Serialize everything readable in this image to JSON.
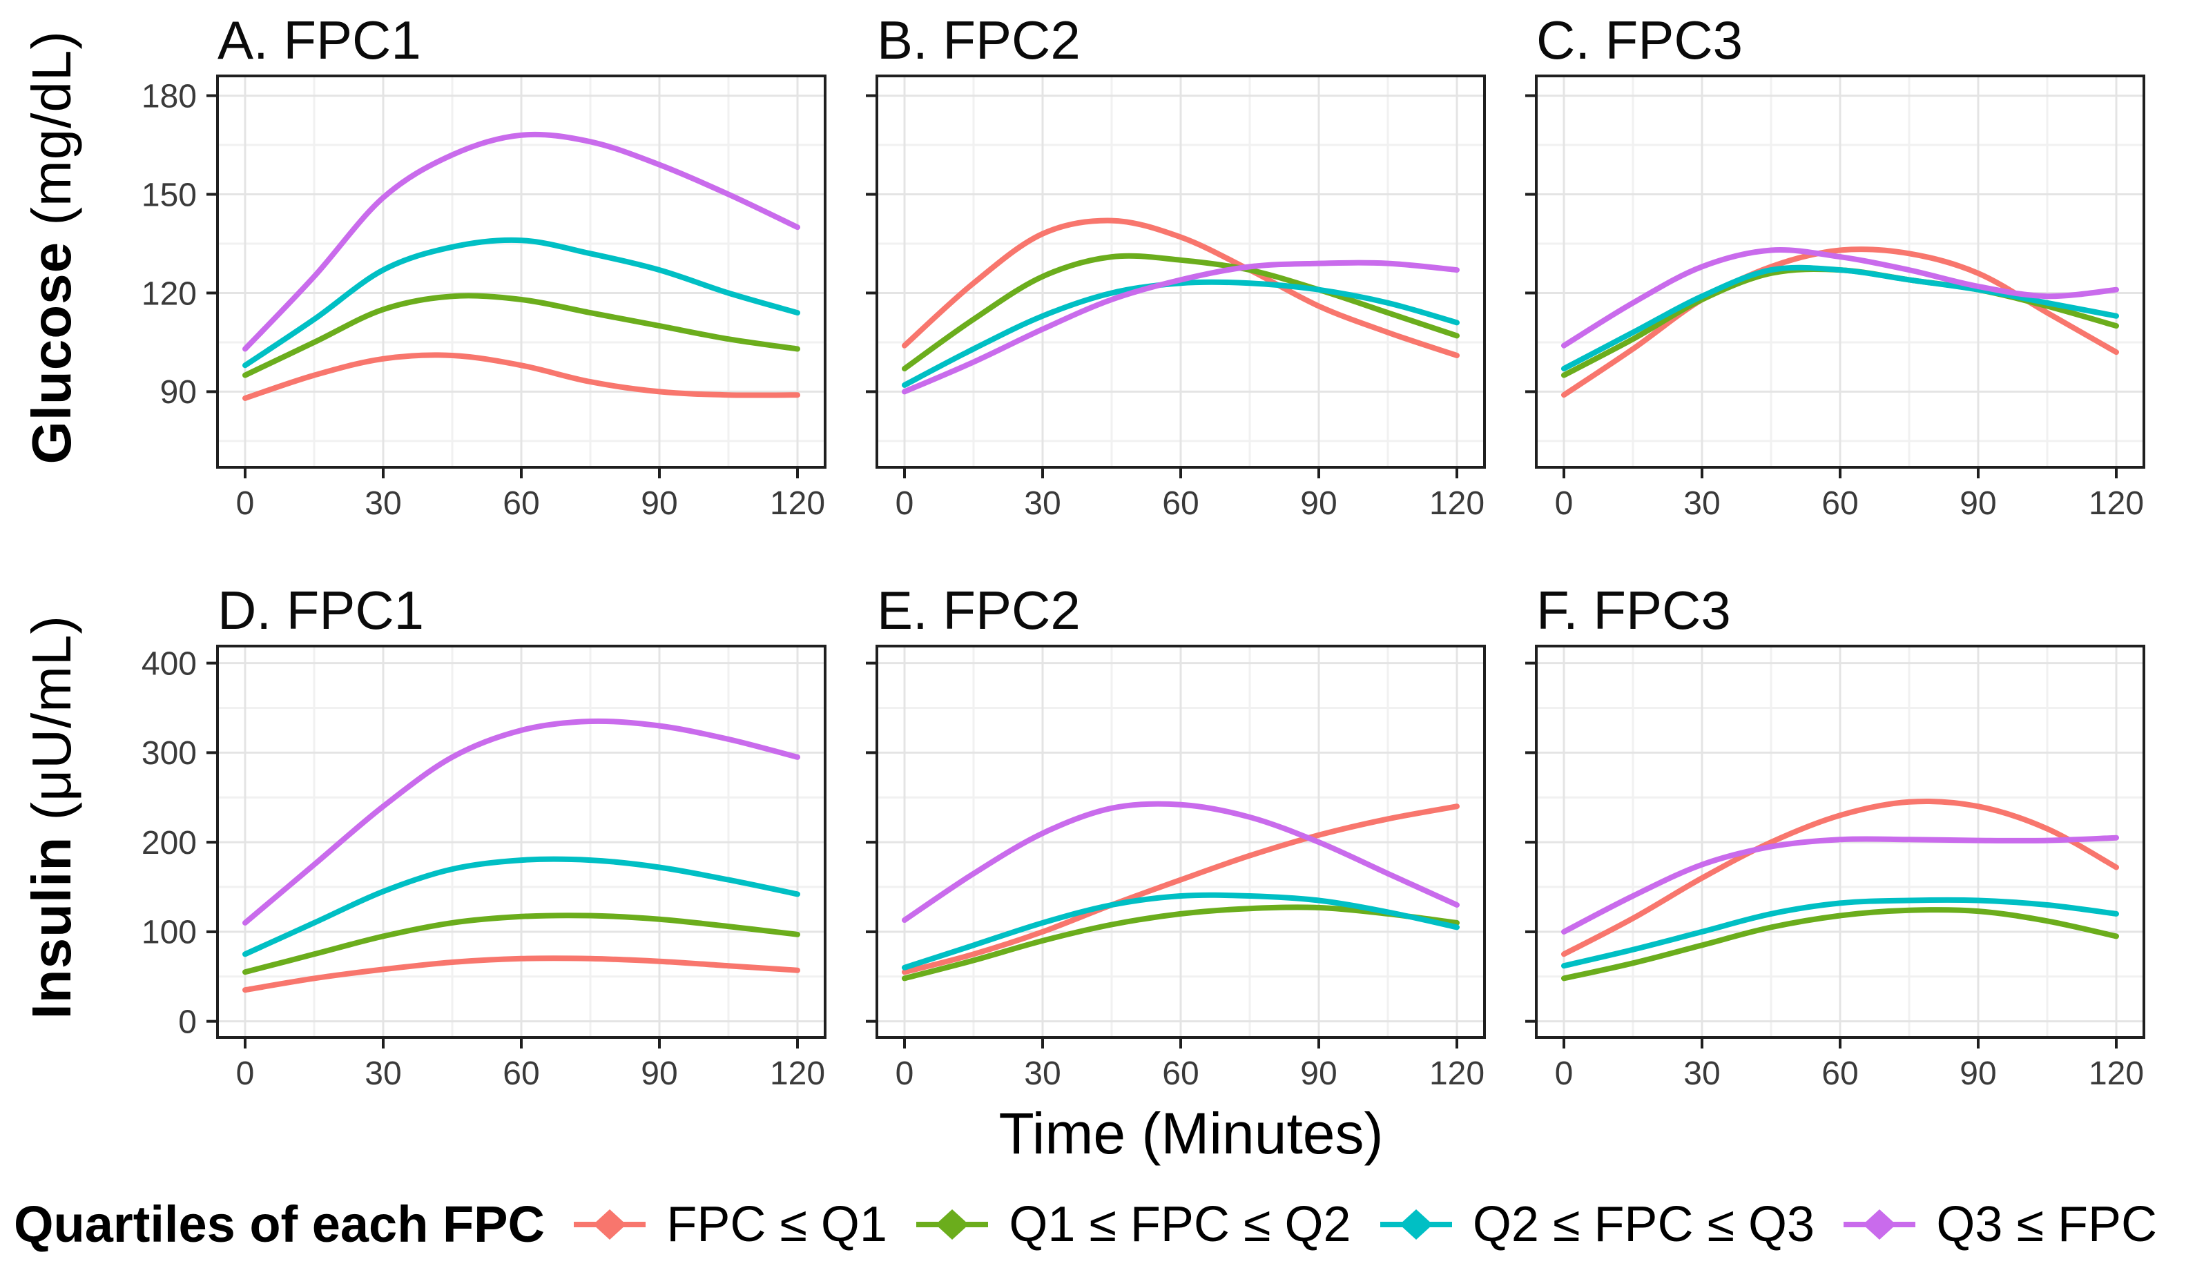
{
  "colors": {
    "q1": "#F8766D",
    "q2": "#6BAD1C",
    "q3": "#00BFC4",
    "q4": "#C96BEC",
    "grid_major": "#E4E4E4",
    "grid_minor": "#F1F1F1",
    "panel_border": "#1F1F1F",
    "tick_text": "#3A3A3A"
  },
  "labels": {
    "y_axis_row1_bold": "Glucose",
    "y_axis_row1_unit": " (mg/dL)",
    "y_axis_row2_bold": "Insulin",
    "y_axis_row2_unit": " (μU/mL)",
    "x_axis": "Time (Minutes)"
  },
  "legend": {
    "title": "Quartiles of each FPC",
    "items": [
      {
        "label": "FPC ≤ Q1",
        "color_key": "q1"
      },
      {
        "label": "Q1 ≤ FPC ≤ Q2",
        "color_key": "q2"
      },
      {
        "label": "Q2 ≤ FPC ≤ Q3",
        "color_key": "q3"
      },
      {
        "label": "Q3 ≤ FPC",
        "color_key": "q4"
      }
    ]
  },
  "chart_data": [
    {
      "type": "line",
      "title": "A. FPC1",
      "ylabel": "Glucose (mg/dL)",
      "x": [
        0,
        15,
        30,
        45,
        60,
        75,
        90,
        105,
        120
      ],
      "xlim": [
        -6,
        126
      ],
      "ylim": [
        67,
        186
      ],
      "xticks": [
        0,
        30,
        60,
        90,
        120
      ],
      "xticks_minor": [
        15,
        45,
        75,
        105
      ],
      "yticks": [
        90,
        120,
        150,
        180
      ],
      "yticks_minor": [
        75,
        105,
        135,
        165
      ],
      "show_y_tick_labels": true,
      "series": [
        {
          "name": "FPC ≤ Q1",
          "color_key": "q1",
          "values": [
            88,
            95,
            100,
            101,
            98,
            93,
            90,
            89,
            89
          ]
        },
        {
          "name": "Q1 ≤ FPC ≤ Q2",
          "color_key": "q2",
          "values": [
            95,
            105,
            115,
            119,
            118,
            114,
            110,
            106,
            103
          ]
        },
        {
          "name": "Q2 ≤ FPC ≤ Q3",
          "color_key": "q3",
          "values": [
            98,
            112,
            127,
            134,
            136,
            132,
            127,
            120,
            114
          ]
        },
        {
          "name": "Q3 ≤ FPC",
          "color_key": "q4",
          "values": [
            103,
            125,
            149,
            162,
            168,
            166,
            159,
            150,
            140
          ]
        }
      ]
    },
    {
      "type": "line",
      "title": "B. FPC2",
      "ylabel": "Glucose (mg/dL)",
      "x": [
        0,
        15,
        30,
        45,
        60,
        75,
        90,
        105,
        120
      ],
      "xlim": [
        -6,
        126
      ],
      "ylim": [
        67,
        186
      ],
      "xticks": [
        0,
        30,
        60,
        90,
        120
      ],
      "xticks_minor": [
        15,
        45,
        75,
        105
      ],
      "yticks": [
        90,
        120,
        150,
        180
      ],
      "yticks_minor": [
        75,
        105,
        135,
        165
      ],
      "show_y_tick_labels": false,
      "series": [
        {
          "name": "FPC ≤ Q1",
          "color_key": "q1",
          "values": [
            104,
            123,
            138,
            142,
            137,
            127,
            116,
            108,
            101
          ]
        },
        {
          "name": "Q1 ≤ FPC ≤ Q2",
          "color_key": "q2",
          "values": [
            97,
            112,
            125,
            131,
            130,
            127,
            121,
            114,
            107
          ]
        },
        {
          "name": "Q2 ≤ FPC ≤ Q3",
          "color_key": "q3",
          "values": [
            92,
            103,
            113,
            120,
            123,
            123,
            121,
            117,
            111
          ]
        },
        {
          "name": "Q3 ≤ FPC",
          "color_key": "q4",
          "values": [
            90,
            99,
            109,
            118,
            124,
            128,
            129,
            129,
            127
          ]
        }
      ]
    },
    {
      "type": "line",
      "title": "C. FPC3",
      "ylabel": "Glucose (mg/dL)",
      "x": [
        0,
        15,
        30,
        45,
        60,
        75,
        90,
        105,
        120
      ],
      "xlim": [
        -6,
        126
      ],
      "ylim": [
        67,
        186
      ],
      "xticks": [
        0,
        30,
        60,
        90,
        120
      ],
      "xticks_minor": [
        15,
        45,
        75,
        105
      ],
      "yticks": [
        90,
        120,
        150,
        180
      ],
      "yticks_minor": [
        75,
        105,
        135,
        165
      ],
      "show_y_tick_labels": false,
      "series": [
        {
          "name": "FPC ≤ Q1",
          "color_key": "q1",
          "values": [
            89,
            103,
            118,
            128,
            133,
            132,
            126,
            114,
            102
          ]
        },
        {
          "name": "Q1 ≤ FPC ≤ Q2",
          "color_key": "q2",
          "values": [
            95,
            106,
            118,
            126,
            127,
            124,
            121,
            116,
            110
          ]
        },
        {
          "name": "Q2 ≤ FPC ≤ Q3",
          "color_key": "q3",
          "values": [
            97,
            108,
            119,
            127,
            127,
            124,
            121,
            117,
            113
          ]
        },
        {
          "name": "Q3 ≤ FPC",
          "color_key": "q4",
          "values": [
            104,
            117,
            128,
            133,
            131,
            127,
            122,
            119,
            121
          ]
        }
      ]
    },
    {
      "type": "line",
      "title": "D. FPC1",
      "ylabel": "Insulin (μU/mL)",
      "x": [
        0,
        15,
        30,
        45,
        60,
        75,
        90,
        105,
        120
      ],
      "xlim": [
        -6,
        126
      ],
      "ylim": [
        -18,
        419
      ],
      "xticks": [
        0,
        30,
        60,
        90,
        120
      ],
      "xticks_minor": [
        15,
        45,
        75,
        105
      ],
      "yticks": [
        0,
        100,
        200,
        300,
        400
      ],
      "yticks_minor": [
        50,
        150,
        250,
        350
      ],
      "show_y_tick_labels": true,
      "series": [
        {
          "name": "FPC ≤ Q1",
          "color_key": "q1",
          "values": [
            35,
            48,
            58,
            66,
            70,
            70,
            67,
            62,
            57
          ]
        },
        {
          "name": "Q1 ≤ FPC ≤ Q2",
          "color_key": "q2",
          "values": [
            55,
            75,
            95,
            110,
            117,
            118,
            114,
            106,
            97
          ]
        },
        {
          "name": "Q2 ≤ FPC ≤ Q3",
          "color_key": "q3",
          "values": [
            75,
            110,
            145,
            170,
            180,
            180,
            172,
            158,
            142
          ]
        },
        {
          "name": "Q3 ≤ FPC",
          "color_key": "q4",
          "values": [
            110,
            175,
            240,
            295,
            325,
            335,
            330,
            315,
            295
          ]
        }
      ]
    },
    {
      "type": "line",
      "title": "E. FPC2",
      "ylabel": "Insulin (μU/mL)",
      "x": [
        0,
        15,
        30,
        45,
        60,
        75,
        90,
        105,
        120
      ],
      "xlim": [
        -6,
        126
      ],
      "ylim": [
        -18,
        419
      ],
      "xticks": [
        0,
        30,
        60,
        90,
        120
      ],
      "xticks_minor": [
        15,
        45,
        75,
        105
      ],
      "yticks": [
        0,
        100,
        200,
        300,
        400
      ],
      "yticks_minor": [
        50,
        150,
        250,
        350
      ],
      "show_y_tick_labels": false,
      "series": [
        {
          "name": "FPC ≤ Q1",
          "color_key": "q1",
          "values": [
            55,
            75,
            100,
            130,
            158,
            185,
            208,
            226,
            240
          ]
        },
        {
          "name": "Q1 ≤ FPC ≤ Q2",
          "color_key": "q2",
          "values": [
            48,
            68,
            90,
            108,
            120,
            126,
            127,
            120,
            110
          ]
        },
        {
          "name": "Q2 ≤ FPC ≤ Q3",
          "color_key": "q3",
          "values": [
            60,
            85,
            110,
            130,
            140,
            140,
            135,
            122,
            105
          ]
        },
        {
          "name": "Q3 ≤ FPC",
          "color_key": "q4",
          "values": [
            113,
            165,
            210,
            238,
            242,
            228,
            200,
            165,
            130
          ]
        }
      ]
    },
    {
      "type": "line",
      "title": "F. FPC3",
      "ylabel": "Insulin (μU/mL)",
      "x": [
        0,
        15,
        30,
        45,
        60,
        75,
        90,
        105,
        120
      ],
      "xlim": [
        -6,
        126
      ],
      "ylim": [
        -18,
        419
      ],
      "xticks": [
        0,
        30,
        60,
        90,
        120
      ],
      "xticks_minor": [
        15,
        45,
        75,
        105
      ],
      "yticks": [
        0,
        100,
        200,
        300,
        400
      ],
      "yticks_minor": [
        50,
        150,
        250,
        350
      ],
      "show_y_tick_labels": false,
      "series": [
        {
          "name": "FPC ≤ Q1",
          "color_key": "q1",
          "values": [
            75,
            115,
            160,
            200,
            230,
            245,
            240,
            215,
            172
          ]
        },
        {
          "name": "Q1 ≤ FPC ≤ Q2",
          "color_key": "q2",
          "values": [
            48,
            65,
            85,
            105,
            118,
            124,
            123,
            112,
            95
          ]
        },
        {
          "name": "Q2 ≤ FPC ≤ Q3",
          "color_key": "q3",
          "values": [
            62,
            80,
            100,
            120,
            132,
            135,
            135,
            130,
            120
          ]
        },
        {
          "name": "Q3 ≤ FPC",
          "color_key": "q4",
          "values": [
            100,
            140,
            175,
            195,
            203,
            203,
            202,
            202,
            205
          ]
        }
      ]
    }
  ]
}
